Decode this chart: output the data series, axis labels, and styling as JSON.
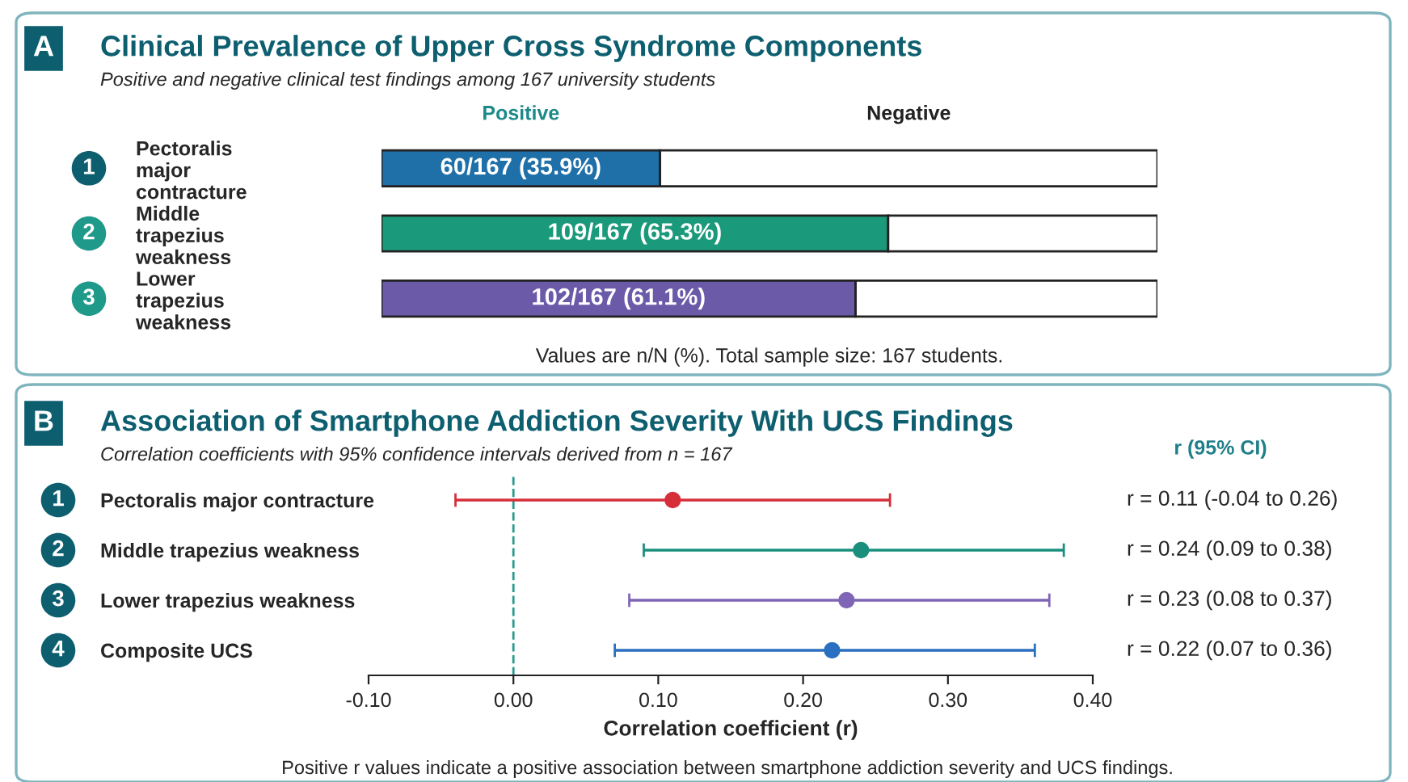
{
  "chart_data": [
    {
      "type": "bar",
      "orientation": "horizontal",
      "stacked": true,
      "title": "Clinical Prevalence of Upper Cross Syndrome Components",
      "subtitle": "Positive and negative clinical test findings among 167 university students",
      "categories": [
        "Pectoralis\nmajor\ncontracture",
        "Middle\ntrapezius\nweakness",
        "Lower\ntrapezius\nweakness"
      ],
      "series": [
        {
          "name": "Positive",
          "color": "#1d8a8a",
          "colors": [
            "#1f6fa8",
            "#1a9a7a",
            "#6a5aa8"
          ],
          "values": [
            35.9,
            65.3,
            61.1
          ],
          "value_labels": [
            "60/167 (35.9%)",
            "109/167 (65.3%)",
            "102/167 (61.1%)"
          ]
        },
        {
          "name": "Negative",
          "color": "#ffffff",
          "values": [
            64.1,
            34.7,
            38.9
          ]
        }
      ],
      "xlim": [
        0,
        100
      ],
      "tick_labels": "y",
      "legend": "top",
      "grid": false,
      "annotations": [
        "A",
        "1",
        "2",
        "3",
        "Values are n/N (%). Total sample size: 167 students."
      ]
    },
    {
      "type": "scatter",
      "orientation": "horizontal",
      "title": "Association of Smartphone Addiction Severity With UCS Findings",
      "subtitle": "Correlation coefficients with 95% confidence intervals derived from n = 167",
      "categories": [
        "Pectoralis major contracture",
        "Middle trapezius weakness",
        "Lower trapezius weakness",
        "Composite UCS"
      ],
      "series": [
        {
          "colors": [
            "#d62f3a",
            "#1a8f7d",
            "#7f65b5",
            "#2a6fc0"
          ],
          "values": [
            0.11,
            0.24,
            0.23,
            0.22
          ],
          "errors": [
            [
              -0.04,
              0.26
            ],
            [
              0.09,
              0.38
            ],
            [
              0.08,
              0.37
            ],
            [
              0.07,
              0.36
            ]
          ],
          "value_labels": [
            "r = 0.11 (-0.04 to 0.26)",
            "r = 0.24 (0.09 to 0.38)",
            "r = 0.23 (0.08 to 0.37)",
            "r = 0.22 (0.07 to 0.36)"
          ]
        }
      ],
      "xlim": [
        -0.1,
        0.4
      ],
      "xticks": [
        {
          "value": -0.1,
          "label": "-0.10"
        },
        {
          "value": 0,
          "label": "0.00"
        },
        {
          "value": 0.1,
          "label": "0.10"
        },
        {
          "value": 0.2,
          "label": "0.20"
        },
        {
          "value": 0.3,
          "label": "0.30"
        },
        {
          "value": 0.4,
          "label": "0.40"
        }
      ],
      "xlabel": "Correlation coefficient (r)",
      "marker": "circle",
      "grid": false,
      "ref_lines": [
        {
          "axis": "x",
          "value": 0,
          "color": "#2a9a8f",
          "line_style": "dashed"
        }
      ],
      "annotations": [
        "B",
        "1",
        "2",
        "3",
        "4",
        "r (95% CI)",
        "Positive r values indicate a positive association between smartphone addiction severity and UCS findings."
      ]
    }
  ]
}
